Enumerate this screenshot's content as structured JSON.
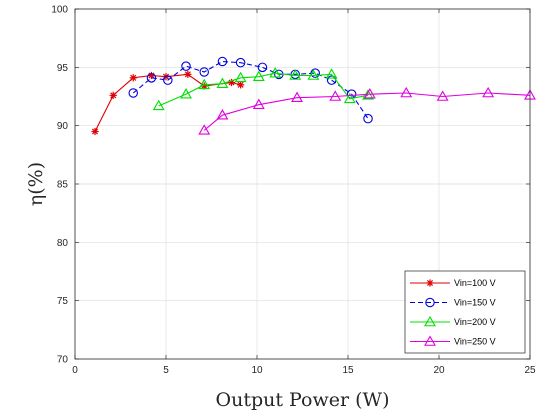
{
  "chart_data": {
    "type": "line",
    "xlabel": "Output Power (W)",
    "ylabel": "η(%)",
    "xlim": [
      0,
      25
    ],
    "ylim": [
      70,
      100
    ],
    "xticks": [
      0,
      5,
      10,
      15,
      20,
      25
    ],
    "yticks": [
      70,
      75,
      80,
      85,
      90,
      95,
      100
    ],
    "grid": true,
    "legend_position": "bottom-right",
    "series": [
      {
        "name": "Vin=100 V",
        "color": "#e00000",
        "marker": "star",
        "dash": "solid",
        "x": [
          1.1,
          2.1,
          3.2,
          4.2,
          5.0,
          6.2,
          7.1,
          8.6,
          9.1
        ],
        "y": [
          89.5,
          92.6,
          94.1,
          94.3,
          94.2,
          94.4,
          93.4,
          93.7,
          93.5
        ]
      },
      {
        "name": "Vin=150 V",
        "color": "#0000e0",
        "marker": "circle",
        "dash": "dashed",
        "x": [
          3.2,
          4.2,
          5.1,
          6.1,
          7.1,
          8.1,
          9.1,
          10.3,
          11.2,
          12.1,
          13.2,
          14.1,
          15.2,
          16.1
        ],
        "y": [
          92.8,
          94.1,
          93.9,
          95.1,
          94.6,
          95.5,
          95.4,
          95.0,
          94.4,
          94.4,
          94.5,
          93.9,
          92.7,
          90.6
        ]
      },
      {
        "name": "Vin=200 V",
        "color": "#00e000",
        "marker": "triangle",
        "dash": "solid",
        "x": [
          4.6,
          6.1,
          7.1,
          8.1,
          9.1,
          10.1,
          11.0,
          12.1,
          13.1,
          14.1,
          15.1,
          16.1
        ],
        "y": [
          91.7,
          92.7,
          93.5,
          93.6,
          94.1,
          94.2,
          94.5,
          94.3,
          94.3,
          94.4,
          92.3,
          92.6
        ]
      },
      {
        "name": "Vin=250 V",
        "color": "#e000e0",
        "marker": "triangle",
        "dash": "solid",
        "x": [
          7.1,
          8.1,
          10.1,
          12.2,
          14.3,
          16.2,
          18.2,
          20.2,
          22.7,
          25.0
        ],
        "y": [
          89.6,
          90.9,
          91.8,
          92.4,
          92.5,
          92.7,
          92.8,
          92.5,
          92.8,
          92.6
        ]
      }
    ]
  }
}
